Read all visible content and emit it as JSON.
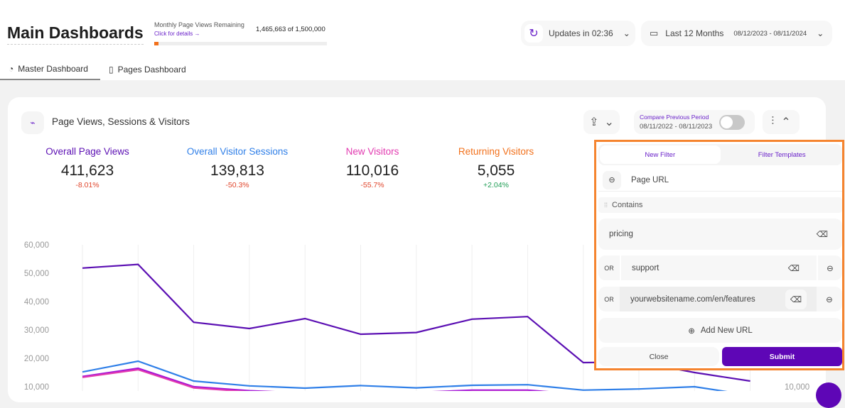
{
  "header": {
    "title": "Main Dashboards",
    "quota_label": "Monthly Page Views Remaining",
    "quota_link": "Click for details →",
    "quota_value": "1,465,663 of 1,500,000",
    "quota_used_percent": 2.3,
    "updates": "Updates in 02:36",
    "range_label": "Last 12 Months",
    "range_dates": "08/12/2023 - 08/11/2024"
  },
  "tabs": [
    {
      "label": "Master Dashboard",
      "active": true
    },
    {
      "label": "Pages Dashboard",
      "active": false
    }
  ],
  "card": {
    "title": "Page Views, Sessions & Visitors",
    "compare_label": "Compare Previous Period",
    "compare_dates": "08/11/2022 - 08/11/2023",
    "compare_on": false
  },
  "metrics": [
    {
      "label": "Overall Page Views",
      "value": "411,623",
      "delta": "-8.01%",
      "color": "#5b0fb3",
      "delta_color": "#e0452b"
    },
    {
      "label": "Overall Visitor Sessions",
      "value": "139,813",
      "delta": "-50.3%",
      "color": "#2f7fe8",
      "delta_color": "#e0452b"
    },
    {
      "label": "New Visitors",
      "value": "110,016",
      "delta": "-55.7%",
      "color": "#e23ab0",
      "delta_color": "#e0452b"
    },
    {
      "label": "Returning Visitors",
      "value": "5,055",
      "delta": "+2.04%",
      "color": "#f2711c",
      "delta_color": "#1f9d55"
    }
  ],
  "filter": {
    "tab_new": "New Filter",
    "tab_templates": "Filter Templates",
    "field": "Page URL",
    "operator": "Contains",
    "values": [
      {
        "prefix": "",
        "value": "pricing"
      },
      {
        "prefix": "OR",
        "value": "support"
      },
      {
        "prefix": "OR",
        "value": "yourwebsitename.com/en/features"
      }
    ],
    "add_label": "Add New URL",
    "close_label": "Close",
    "submit_label": "Submit",
    "accent": "#5e06b6",
    "border": "#f5842f"
  },
  "chart_data": {
    "type": "line",
    "ylim": [
      0,
      60000
    ],
    "yticks": [
      "60,000",
      "50,000",
      "40,000",
      "30,000",
      "20,000",
      "10,000"
    ],
    "right_tick": "10,000",
    "grid": true,
    "series": [
      {
        "color": "#5b0fb3",
        "values": [
          51800,
          53100,
          32700,
          30500,
          34000,
          28500,
          29100,
          33800,
          34700,
          18500,
          18700,
          15000,
          12000
        ]
      },
      {
        "color": "#2f7fe8",
        "values": [
          15200,
          19000,
          12000,
          10300,
          9500,
          10400,
          9600,
          10500,
          10700,
          8800,
          9200,
          10000,
          7000
        ]
      },
      {
        "color": "#e23ab0",
        "values": [
          13300,
          16000,
          9600,
          8200,
          7500,
          7500,
          7600,
          8300,
          8300,
          7000,
          7200,
          7500,
          5000
        ]
      },
      {
        "color": "#a414d6",
        "values": [
          13600,
          16500,
          10000,
          8600,
          7800,
          7800,
          8000,
          8800,
          8800,
          7300,
          7500,
          7800,
          5200
        ]
      }
    ]
  }
}
